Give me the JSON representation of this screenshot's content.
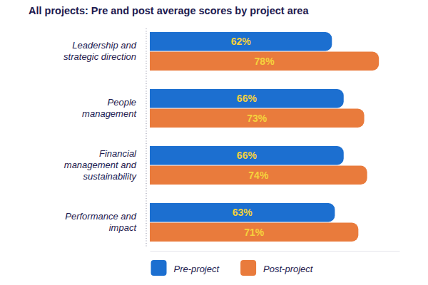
{
  "chart_data": {
    "type": "bar",
    "orientation": "horizontal",
    "title": "All projects: Pre and post average scores by project area",
    "categories": [
      "Leadership and strategic direction",
      "People management",
      "Financial management and sustainability",
      "Performance and impact"
    ],
    "series": [
      {
        "name": "Pre-project",
        "color": "#1c6fd0",
        "values": [
          62,
          66,
          66,
          63
        ],
        "value_labels": [
          "62%",
          "66%",
          "66%",
          "63%"
        ]
      },
      {
        "name": "Post-project",
        "color": "#e97b3c",
        "values": [
          78,
          73,
          74,
          71
        ],
        "value_labels": [
          "78%",
          "73%",
          "74%",
          "71%"
        ]
      }
    ],
    "xlim": [
      0,
      85
    ],
    "tick_labels": "y",
    "data_labels": true,
    "legend": "bottom",
    "grid": false
  }
}
